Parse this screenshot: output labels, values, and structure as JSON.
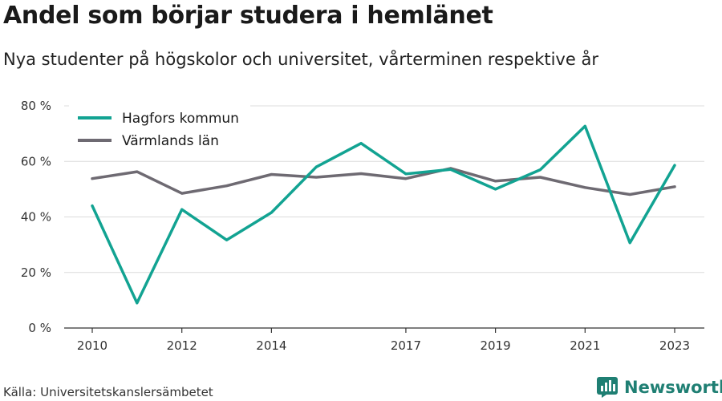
{
  "chart_data": {
    "type": "line",
    "title": "Andel som börjar studera i hemlänet",
    "subtitle": "Nya studenter på högskolor och universitet, vårterminen respektive år",
    "x": [
      2010,
      2011,
      2012,
      2013,
      2014,
      2015,
      2016,
      2017,
      2018,
      2019,
      2020,
      2021,
      2022,
      2023
    ],
    "x_tick_labels": [
      "2010",
      "2012",
      "2014",
      "2017",
      "2019",
      "2021",
      "2023"
    ],
    "y_ticks": [
      0,
      20,
      40,
      60,
      80
    ],
    "y_tick_labels": [
      "0 %",
      "20 %",
      "40 %",
      "60 %",
      "80 %"
    ],
    "ylim": [
      0,
      80
    ],
    "xlim": [
      2010,
      2023
    ],
    "grid": "horizontal",
    "legend_position": "top-left",
    "series": [
      {
        "name": "Hagfors kommun",
        "color": "#12a392",
        "values": [
          44,
          9,
          42.7,
          31.7,
          41.6,
          58,
          66.5,
          55.5,
          57.1,
          50,
          57,
          72.7,
          30.7,
          58.6
        ]
      },
      {
        "name": "Värmlands län",
        "color": "#6e6a72",
        "values": [
          53.8,
          56.3,
          48.5,
          51.2,
          55.3,
          54.3,
          55.6,
          53.8,
          57.5,
          52.9,
          54.3,
          50.6,
          48.1,
          50.9
        ]
      }
    ]
  },
  "source": "Källa: Universitetskanslersämbetet",
  "brand": {
    "name": "Newsworthy",
    "icon": "newsworthy-logo-icon",
    "color": "#1f7f73"
  }
}
